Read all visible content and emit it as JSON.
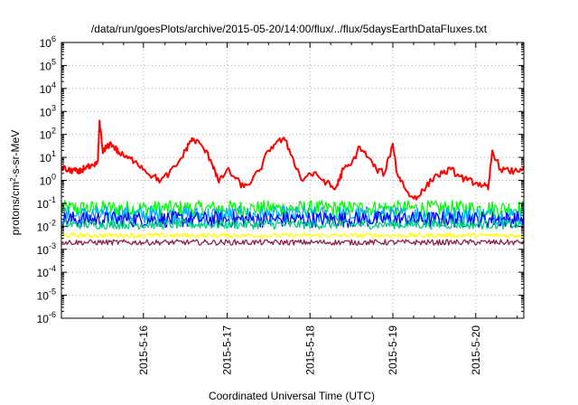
{
  "chart_data": {
    "type": "line",
    "title": "/data/run/goesPlots/archive/2015-05-20/14:00/flux/../flux/5daysEarthDataFluxes.txt",
    "xlabel": "Coordinated Universal Time (UTC)",
    "ylabel": {
      "pre": "protons/cm",
      "sup": "2",
      "post": "-s-sr-MeV"
    },
    "y_scale": "log",
    "ylim": [
      1e-06,
      1000000.0
    ],
    "xlim": [
      0,
      5.58
    ],
    "grid": true,
    "y_ticks": [
      {
        "value": -6,
        "base": "10",
        "exp": "-6"
      },
      {
        "value": -5,
        "base": "10",
        "exp": "-5"
      },
      {
        "value": -4,
        "base": "10",
        "exp": "-4"
      },
      {
        "value": -3,
        "base": "10",
        "exp": "-3"
      },
      {
        "value": -2,
        "base": "10",
        "exp": "-2"
      },
      {
        "value": -1,
        "base": "10",
        "exp": "-1"
      },
      {
        "value": 0,
        "base": "10",
        "exp": "0"
      },
      {
        "value": 1,
        "base": "10",
        "exp": "1"
      },
      {
        "value": 2,
        "base": "10",
        "exp": "2"
      },
      {
        "value": 3,
        "base": "10",
        "exp": "3"
      },
      {
        "value": 4,
        "base": "10",
        "exp": "4"
      },
      {
        "value": 5,
        "base": "10",
        "exp": "5"
      },
      {
        "value": 6,
        "base": "10",
        "exp": "6"
      }
    ],
    "x_ticks": [
      {
        "value": 0.99,
        "label": "2015-5-16"
      },
      {
        "value": 2.0,
        "label": "2015-5-17"
      },
      {
        "value": 3.0,
        "label": "2015-5-18"
      },
      {
        "value": 4.0,
        "label": "2015-5-19"
      },
      {
        "value": 5.0,
        "label": "2015-5-20"
      }
    ],
    "series": [
      {
        "color": "#ff0000",
        "x": [
          0.0,
          0.05,
          0.1,
          0.15,
          0.2,
          0.25,
          0.3,
          0.35,
          0.4,
          0.44,
          0.46,
          0.5,
          0.55,
          0.6,
          0.65,
          0.7,
          0.8,
          0.9,
          1.0,
          1.1,
          1.2,
          1.3,
          1.4,
          1.5,
          1.55,
          1.6,
          1.7,
          1.8,
          1.85,
          1.9,
          2.0,
          2.1,
          2.2,
          2.3,
          2.4,
          2.5,
          2.6,
          2.7,
          2.8,
          2.9,
          3.0,
          3.1,
          3.2,
          3.3,
          3.35,
          3.4,
          3.5,
          3.6,
          3.7,
          3.8,
          3.9,
          4.0,
          4.05,
          4.1,
          4.2,
          4.3,
          4.4,
          4.5,
          4.6,
          4.7,
          4.8,
          4.9,
          5.0,
          5.1,
          5.15,
          5.2,
          5.3,
          5.4,
          5.5,
          5.58
        ],
        "y": [
          4,
          3,
          2.5,
          3,
          2,
          3,
          4,
          3.5,
          4,
          7,
          400,
          15,
          30,
          40,
          25,
          15,
          9,
          7,
          3,
          1.5,
          1,
          2,
          5,
          20,
          50,
          60,
          30,
          8,
          3,
          0.8,
          3,
          1.2,
          0.5,
          1,
          3,
          20,
          50,
          55,
          8,
          1,
          2,
          1.5,
          0.8,
          0.4,
          1,
          3,
          5,
          30,
          10,
          3,
          2,
          40,
          2,
          1,
          0.2,
          0.2,
          0.5,
          1.5,
          2,
          3,
          1.5,
          1,
          0.8,
          0.6,
          0.4,
          20,
          3,
          2.5,
          2.5,
          4
        ]
      },
      {
        "color": "#00ff00",
        "center": 0.06,
        "spread": 0.35
      },
      {
        "color": "#00aaff",
        "center": 0.03,
        "spread": 0.4
      },
      {
        "color": "#0000ff",
        "center": 0.02,
        "spread": 0.35
      },
      {
        "color": "#00d080",
        "center": 0.012,
        "spread": 0.2
      },
      {
        "color": "#ffff00",
        "center": 0.004,
        "spread": 0.1
      },
      {
        "color": "#8b2252",
        "center": 0.002,
        "spread": 0.12
      }
    ]
  }
}
